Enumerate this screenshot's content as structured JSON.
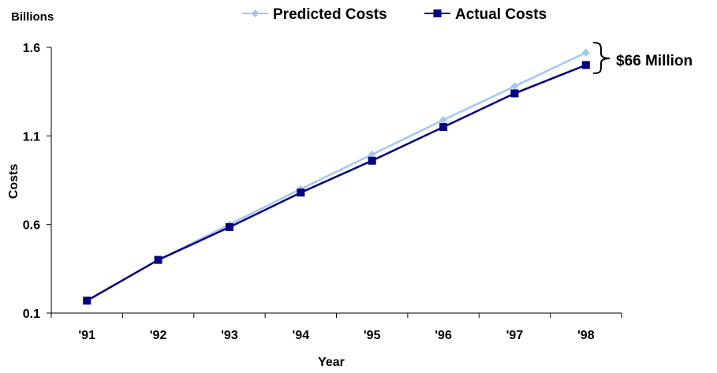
{
  "chart_data": {
    "type": "line",
    "categories": [
      "'91",
      "'92",
      "'93",
      "'94",
      "'95",
      "'96",
      "'97",
      "'98"
    ],
    "series": [
      {
        "name": "Predicted Costs",
        "values": [
          0.17,
          0.4,
          0.6,
          0.8,
          0.995,
          1.19,
          1.38,
          1.57
        ],
        "color": "#a3c8f0",
        "marker": "diamond"
      },
      {
        "name": "Actual Costs",
        "values": [
          0.17,
          0.4,
          0.585,
          0.78,
          0.96,
          1.15,
          1.34,
          1.5
        ],
        "color": "#000080",
        "marker": "square"
      }
    ],
    "title": "",
    "xlabel": "Year",
    "ylabel": "Costs",
    "yunit": "Billions",
    "ylim": [
      0.1,
      1.6
    ],
    "yticks": [
      "0.1",
      "0.6",
      "1.1",
      "1.6"
    ],
    "grid": false,
    "legend": "top",
    "annotation": "$66 Million"
  }
}
